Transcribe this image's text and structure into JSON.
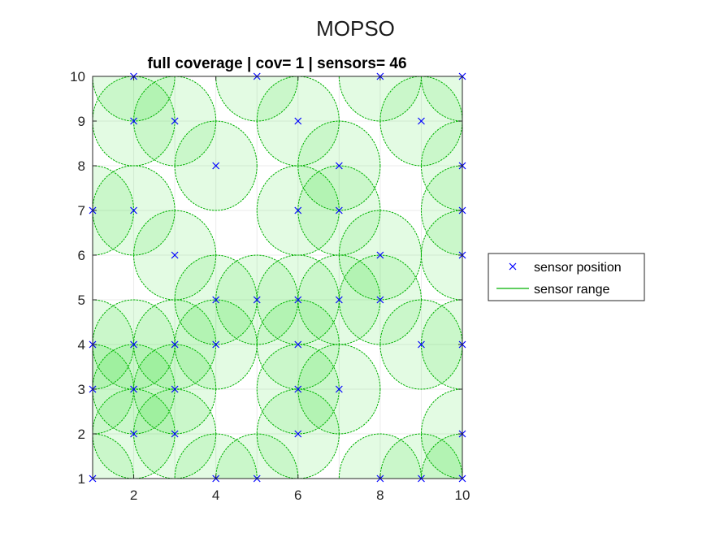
{
  "figure": {
    "title": "MOPSO"
  },
  "chart_data": {
    "type": "scatter",
    "title": "full coverage | cov= 1 | sensors= 46",
    "xlabel": "",
    "ylabel": "",
    "xlim": [
      1,
      10
    ],
    "ylim": [
      1,
      10
    ],
    "xticks": [
      "2",
      "4",
      "6",
      "8",
      "10"
    ],
    "yticks": [
      "1",
      "2",
      "3",
      "4",
      "5",
      "6",
      "7",
      "8",
      "9",
      "10"
    ],
    "grid": true,
    "sensor_range": 1,
    "legend_position": "outside-right",
    "series": [
      {
        "name": "sensor position",
        "marker": "x",
        "color": "#0000ff",
        "points": [
          [
            1,
            1
          ],
          [
            4,
            1
          ],
          [
            5,
            1
          ],
          [
            8,
            1
          ],
          [
            9,
            1
          ],
          [
            10,
            1
          ],
          [
            2,
            2
          ],
          [
            3,
            2
          ],
          [
            6,
            2
          ],
          [
            10,
            2
          ],
          [
            1,
            3
          ],
          [
            2,
            3
          ],
          [
            3,
            3
          ],
          [
            6,
            3
          ],
          [
            7,
            3
          ],
          [
            1,
            4
          ],
          [
            2,
            4
          ],
          [
            3,
            4
          ],
          [
            4,
            4
          ],
          [
            6,
            4
          ],
          [
            9,
            4
          ],
          [
            10,
            4
          ],
          [
            4,
            5
          ],
          [
            5,
            5
          ],
          [
            6,
            5
          ],
          [
            7,
            5
          ],
          [
            8,
            5
          ],
          [
            3,
            6
          ],
          [
            8,
            6
          ],
          [
            10,
            6
          ],
          [
            1,
            7
          ],
          [
            2,
            7
          ],
          [
            6,
            7
          ],
          [
            7,
            7
          ],
          [
            10,
            7
          ],
          [
            4,
            8
          ],
          [
            7,
            8
          ],
          [
            10,
            8
          ],
          [
            2,
            9
          ],
          [
            3,
            9
          ],
          [
            6,
            9
          ],
          [
            9,
            9
          ],
          [
            2,
            10
          ],
          [
            5,
            10
          ],
          [
            8,
            10
          ],
          [
            10,
            10
          ]
        ]
      },
      {
        "name": "sensor range",
        "line_color": "#00b000",
        "fill_color": "#00dd00",
        "fill_opacity": 0.11
      }
    ]
  }
}
